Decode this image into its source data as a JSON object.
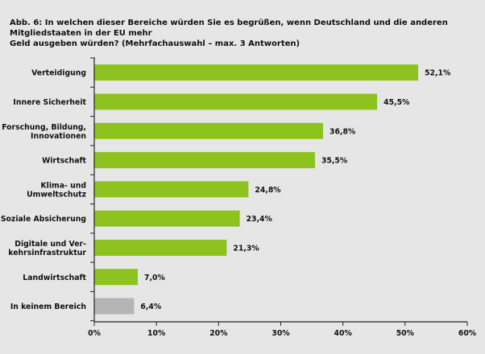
{
  "title": "Abb. 6: In welchen dieser Bereiche würden Sie es begrüßen, wenn Deutschland und die anderen Mitgliedstaaten in der EU mehr\nGeld ausgeben würden? (Mehrfachauswahl – max. 3 Antworten)",
  "colors": {
    "background": "#e6e6e6",
    "bar": "#8dc21f",
    "bar_neutral": "#b4b4b4",
    "axis": "#222222"
  },
  "chart_data": {
    "type": "bar",
    "orientation": "horizontal",
    "title": "Abb. 6: In welchen dieser Bereiche würden Sie es begrüßen, wenn Deutschland und die anderen Mitgliedstaaten in der EU mehr Geld ausgeben würden? (Mehrfachauswahl – max. 3 Antworten)",
    "categories": [
      "Verteidigung",
      "Innere Sicherheit",
      "Forschung, Bildung,\nInnovationen",
      "Wirtschaft",
      "Klima- und\nUmweltschutz",
      "Soziale Absicherung",
      "Digitale und Ver-\nkehrsinfrastruktur",
      "Landwirtschaft",
      "In keinem Bereich"
    ],
    "values": [
      52.1,
      45.5,
      36.8,
      35.5,
      24.8,
      23.4,
      21.3,
      7.0,
      6.4
    ],
    "value_labels": [
      "52,1%",
      "45,5%",
      "36,8%",
      "35,5%",
      "24,8%",
      "23,4%",
      "21,3%",
      "7,0%",
      "6,4%"
    ],
    "bar_colors": [
      "green",
      "green",
      "green",
      "green",
      "green",
      "green",
      "green",
      "green",
      "grey"
    ],
    "xlim": [
      0,
      60
    ],
    "xticks": [
      0,
      10,
      20,
      30,
      40,
      50,
      60
    ],
    "xtick_labels": [
      "0%",
      "10%",
      "20%",
      "30%",
      "40%",
      "50%",
      "60%"
    ],
    "grid": false,
    "xlabel": "",
    "ylabel": ""
  }
}
